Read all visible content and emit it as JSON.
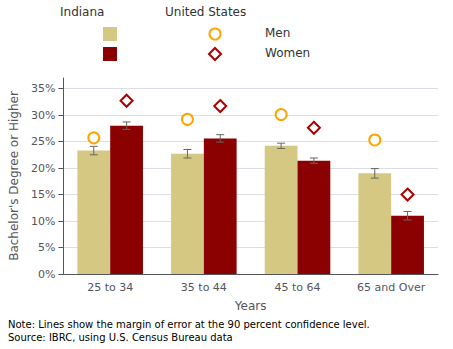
{
  "chart_data": {
    "type": "bar",
    "xlabel": "Years",
    "ylabel": "Bachelor's Degree or Higher",
    "categories": [
      "25 to 34",
      "35 to 44",
      "45 to 64",
      "65 and Over"
    ],
    "series": [
      {
        "name": "Men",
        "group": "Indiana",
        "type": "bar",
        "color": "#D4C882",
        "values": [
          23.3,
          22.7,
          24.2,
          19.0
        ],
        "errors": [
          0.8,
          0.8,
          0.5,
          0.9
        ]
      },
      {
        "name": "Women",
        "group": "Indiana",
        "type": "bar",
        "color": "#8B0000",
        "values": [
          28.0,
          25.6,
          21.4,
          11.0
        ],
        "errors": [
          0.7,
          0.7,
          0.5,
          0.8
        ]
      },
      {
        "name": "Men",
        "group": "United States",
        "type": "scatter",
        "marker": "circle",
        "color": "#FFA500",
        "values": [
          25.7,
          29.2,
          30.1,
          25.3
        ],
        "errors": [
          0.3,
          0.3,
          0.2,
          0.2
        ]
      },
      {
        "name": "Women",
        "group": "United States",
        "type": "scatter",
        "marker": "diamond",
        "color": "#AA0000",
        "values": [
          32.7,
          31.7,
          27.6,
          15.0
        ],
        "errors": [
          0.3,
          0.3,
          0.2,
          0.3
        ]
      }
    ],
    "ylim": [
      0,
      37
    ],
    "yticks": [
      {
        "value": 0,
        "label": "0%"
      },
      {
        "value": 5,
        "label": "5%"
      },
      {
        "value": 10,
        "label": "10%"
      },
      {
        "value": 15,
        "label": "15%"
      },
      {
        "value": 20,
        "label": "20%"
      },
      {
        "value": 25,
        "label": "25%"
      },
      {
        "value": 30,
        "label": "30%"
      },
      {
        "value": 35,
        "label": "35%"
      }
    ],
    "grid": true,
    "legend": "top",
    "annotations": [
      "Note: Lines show the margin of error at the 90 percent confidence level.",
      "Source: IBRC, using U.S. Census Bureau data"
    ]
  }
}
